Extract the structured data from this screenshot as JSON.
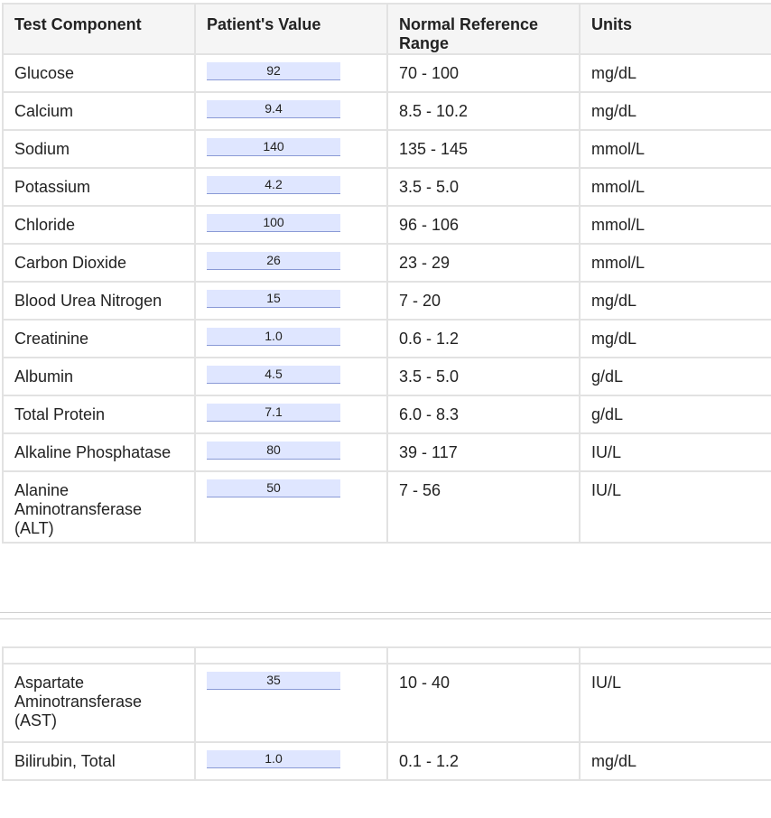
{
  "headers": {
    "component": "Test Component",
    "value": "Patient's Value",
    "range": "Normal Reference Range",
    "units": "Units"
  },
  "rows": [
    {
      "component": "Glucose",
      "value": "92",
      "range": "70 - 100",
      "units": "mg/dL"
    },
    {
      "component": "Calcium",
      "value": "9.4",
      "range": "8.5 - 10.2",
      "units": "mg/dL"
    },
    {
      "component": "Sodium",
      "value": "140",
      "range": "135 - 145",
      "units": "mmol/L"
    },
    {
      "component": "Potassium",
      "value": "4.2",
      "range": "3.5 - 5.0",
      "units": "mmol/L"
    },
    {
      "component": "Chloride",
      "value": "100",
      "range": "96 - 106",
      "units": "mmol/L"
    },
    {
      "component": "Carbon Dioxide",
      "value": "26",
      "range": "23 - 29",
      "units": "mmol/L"
    },
    {
      "component": "Blood Urea Nitrogen",
      "value": "15",
      "range": "7 - 20",
      "units": "mg/dL"
    },
    {
      "component": "Creatinine",
      "value": "1.0",
      "range": "0.6 - 1.2",
      "units": "mg/dL"
    },
    {
      "component": "Albumin",
      "value": "4.5",
      "range": "3.5 - 5.0",
      "units": "g/dL"
    },
    {
      "component": "Total Protein",
      "value": "7.1",
      "range": "6.0 - 8.3",
      "units": "g/dL"
    },
    {
      "component": "Alkaline Phosphatase",
      "value": "80",
      "range": "39 - 117",
      "units": "IU/L"
    },
    {
      "component": "Alanine Aminotransferase (ALT)",
      "value": "50",
      "range": "7 - 56",
      "units": "IU/L"
    },
    {
      "component": "Aspartate Aminotransferase (AST)",
      "value": "35",
      "range": "10 - 40",
      "units": "IU/L"
    },
    {
      "component": "Bilirubin, Total",
      "value": "1.0",
      "range": "0.1 - 1.2",
      "units": "mg/dL"
    }
  ]
}
